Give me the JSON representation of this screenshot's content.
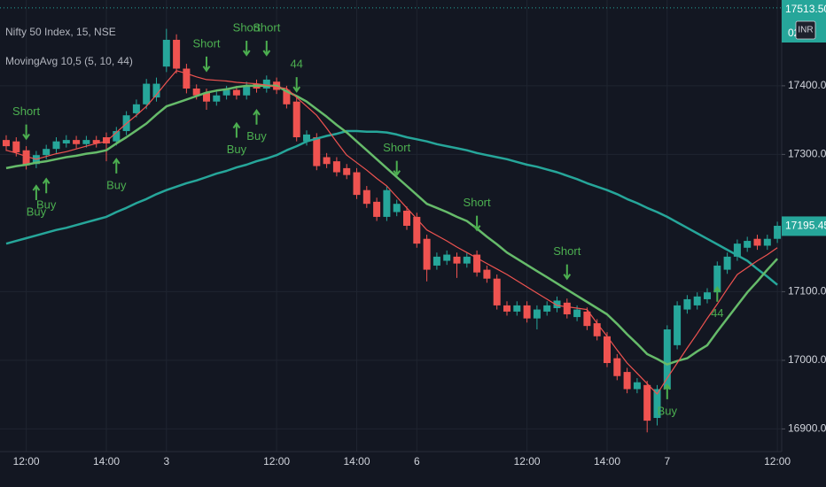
{
  "chart_data": {
    "type": "candlestick",
    "title": "Nifty 50 Index, 15, NSE",
    "subtitle": "MovingAvg 10,5 (5, 10, 44)",
    "currency": "INR",
    "countdown": "02",
    "up_color": "#26a69a",
    "down_color": "#ef5350",
    "grid": true,
    "categories": [
      null,
      null,
      "12:00",
      null,
      null,
      null,
      null,
      null,
      null,
      null,
      "14:00",
      null,
      null,
      null,
      null,
      null,
      "3",
      null,
      null,
      null,
      null,
      null,
      null,
      null,
      null,
      null,
      null,
      "12:00",
      null,
      null,
      null,
      null,
      null,
      null,
      null,
      "14:00",
      null,
      null,
      null,
      null,
      null,
      "6",
      null,
      null,
      null,
      null,
      null,
      null,
      null,
      null,
      null,
      null,
      "12:00",
      null,
      null,
      null,
      null,
      null,
      null,
      null,
      "14:00",
      null,
      null,
      null,
      null,
      null,
      "7",
      null,
      null,
      null,
      null,
      null,
      null,
      null,
      null,
      null,
      null,
      "12:00"
    ],
    "open": [
      17321,
      17319,
      17306,
      17286,
      17299,
      17308,
      17316,
      17321,
      17315,
      17321,
      17325,
      17319,
      17334,
      17360,
      17373,
      17383,
      17428,
      17467,
      17425,
      17396,
      17390,
      17377,
      17386,
      17394,
      17386,
      17403,
      17396,
      17406,
      17394,
      17377,
      17319,
      17325,
      17296,
      17290,
      17280,
      17274,
      17248,
      17231,
      17209,
      17216,
      17218,
      17209,
      17177,
      17138,
      17145,
      17151,
      17141,
      17154,
      17132,
      17119,
      17080,
      17071,
      17080,
      17061,
      17071,
      17076,
      17084,
      17063,
      17071,
      17054,
      17035,
      17003,
      16983,
      16958,
      16964,
      16916,
      16958,
      17022,
      17074,
      17080,
      17089,
      17099,
      17132,
      17151,
      17164,
      17177,
      17167,
      17177
    ],
    "high": [
      17328,
      17325,
      17312,
      17305,
      17314,
      17325,
      17328,
      17327,
      17327,
      17327,
      17332,
      17340,
      17363,
      17380,
      17410,
      17412,
      17483,
      17475,
      17432,
      17402,
      17396,
      17392,
      17400,
      17400,
      17406,
      17409,
      17415,
      17412,
      17400,
      17383,
      17335,
      17331,
      17302,
      17296,
      17286,
      17280,
      17254,
      17237,
      17254,
      17234,
      17224,
      17215,
      17183,
      17157,
      17160,
      17157,
      17157,
      17160,
      17138,
      17125,
      17086,
      17086,
      17086,
      17080,
      17086,
      17093,
      17090,
      17080,
      17077,
      17060,
      17041,
      17009,
      16989,
      16974,
      16970,
      16964,
      17051,
      17086,
      17095,
      17099,
      17105,
      17144,
      17157,
      17176,
      17180,
      17183,
      17183,
      17202
    ],
    "low": [
      17305,
      17297,
      17278,
      17280,
      17293,
      17302,
      17310,
      17309,
      17310,
      17310,
      17290,
      17313,
      17328,
      17354,
      17366,
      17377,
      17420,
      17418,
      17389,
      17380,
      17365,
      17371,
      17380,
      17380,
      17380,
      17390,
      17390,
      17388,
      17367,
      17319,
      17313,
      17277,
      17280,
      17268,
      17264,
      17235,
      17222,
      17203,
      17203,
      17210,
      17190,
      17164,
      17115,
      17132,
      17139,
      17120,
      17135,
      17122,
      17113,
      17074,
      17065,
      17065,
      17055,
      17045,
      17065,
      17070,
      17061,
      17057,
      17044,
      17029,
      16990,
      16971,
      16952,
      16952,
      16895,
      16905,
      16952,
      17016,
      17068,
      17074,
      17083,
      17093,
      17126,
      17145,
      17158,
      17161,
      17161,
      17171
    ],
    "close": [
      17312,
      17303,
      17284,
      17299,
      17308,
      17319,
      17321,
      17315,
      17321,
      17316,
      17316,
      17334,
      17357,
      17373,
      17403,
      17403,
      17467,
      17425,
      17396,
      17386,
      17377,
      17386,
      17394,
      17386,
      17400,
      17396,
      17409,
      17394,
      17373,
      17325,
      17329,
      17283,
      17286,
      17274,
      17270,
      17241,
      17228,
      17209,
      17248,
      17228,
      17196,
      17170,
      17132,
      17151,
      17154,
      17141,
      17151,
      17128,
      17119,
      17080,
      17071,
      17080,
      17061,
      17074,
      17080,
      17087,
      17067,
      17074,
      17050,
      17035,
      16996,
      16977,
      16958,
      16968,
      16912,
      16958,
      17045,
      17080,
      17089,
      17093,
      17099,
      17138,
      17151,
      17170,
      17174,
      17167,
      17177,
      17196
    ],
    "overlays": [
      {
        "color": "#26a69a",
        "values": [
          17170,
          17174,
          17178,
          17182,
          17186,
          17190,
          17193,
          17197,
          17201,
          17205,
          17209,
          17216,
          17222,
          17229,
          17235,
          17242,
          17248,
          17253,
          17258,
          17262,
          17267,
          17272,
          17276,
          17281,
          17285,
          17290,
          17294,
          17299,
          17306,
          17312,
          17319,
          17323,
          17327,
          17330,
          17334,
          17334,
          17333,
          17333,
          17332,
          17329,
          17325,
          17322,
          17319,
          17315,
          17312,
          17309,
          17306,
          17302,
          17299,
          17296,
          17293,
          17289,
          17285,
          17282,
          17278,
          17274,
          17269,
          17264,
          17258,
          17253,
          17248,
          17242,
          17235,
          17229,
          17222,
          17216,
          17209,
          17201,
          17193,
          17185,
          17177,
          17169,
          17161,
          17153,
          17145,
          17133,
          17122,
          17110
        ]
      },
      {
        "color": "#66bb6a",
        "values": [
          17280,
          17283,
          17285,
          17288,
          17290,
          17293,
          17296,
          17298,
          17301,
          17303,
          17306,
          17316,
          17325,
          17335,
          17345,
          17358,
          17370,
          17375,
          17380,
          17385,
          17390,
          17393,
          17395,
          17398,
          17400,
          17400,
          17400,
          17400,
          17392,
          17385,
          17377,
          17366,
          17355,
          17343,
          17332,
          17319,
          17306,
          17293,
          17280,
          17267,
          17254,
          17241,
          17228,
          17222,
          17216,
          17209,
          17203,
          17192,
          17180,
          17169,
          17157,
          17148,
          17139,
          17130,
          17121,
          17112,
          17103,
          17094,
          17085,
          17076,
          17067,
          17053,
          17038,
          17024,
          17009,
          17002,
          16994,
          16999,
          17003,
          17013,
          17022,
          17042,
          17061,
          17080,
          17099,
          17115,
          17132,
          17148
        ]
      },
      {
        "color": "#ef5350",
        "values": [
          17306,
          17302,
          17297,
          17293,
          17297,
          17301,
          17304,
          17308,
          17312,
          17316,
          17319,
          17332,
          17345,
          17357,
          17370,
          17387,
          17405,
          17422,
          17418,
          17413,
          17409,
          17408,
          17407,
          17405,
          17404,
          17403,
          17401,
          17398,
          17396,
          17383,
          17370,
          17357,
          17338,
          17318,
          17299,
          17288,
          17277,
          17265,
          17254,
          17238,
          17222,
          17206,
          17190,
          17182,
          17174,
          17165,
          17157,
          17149,
          17141,
          17133,
          17125,
          17116,
          17107,
          17098,
          17089,
          17080,
          17078,
          17076,
          17074,
          17054,
          17035,
          17015,
          16996,
          16981,
          16966,
          16951,
          16974,
          16996,
          17018,
          17039,
          17061,
          17082,
          17104,
          17125,
          17135,
          17145,
          17154,
          17164
        ]
      }
    ],
    "annotations": [
      {
        "text": "Short",
        "x": 2,
        "y": 17323,
        "direction": "down"
      },
      {
        "text": "Buy",
        "x": 3,
        "y": 17254,
        "direction": "up"
      },
      {
        "text": "Buy",
        "x": 4,
        "y": 17264,
        "direction": "up"
      },
      {
        "text": "Buy",
        "x": 11,
        "y": 17293,
        "direction": "up"
      },
      {
        "text": "Short",
        "x": 20,
        "y": 17422,
        "direction": "down"
      },
      {
        "text": "Buy",
        "x": 23,
        "y": 17345,
        "direction": "up"
      },
      {
        "text": "Short",
        "x": 24,
        "y": 17445,
        "direction": "down"
      },
      {
        "text": "Buy",
        "x": 25,
        "y": 17364,
        "direction": "up"
      },
      {
        "text": "Short",
        "x": 26,
        "y": 17445,
        "direction": "down"
      },
      {
        "text": "44",
        "x": 29,
        "y": 17392,
        "direction": "down"
      },
      {
        "text": "Short",
        "x": 39,
        "y": 17270,
        "direction": "down"
      },
      {
        "text": "Short",
        "x": 47,
        "y": 17190,
        "direction": "down"
      },
      {
        "text": "Short",
        "x": 56,
        "y": 17119,
        "direction": "down"
      },
      {
        "text": "Buy",
        "x": 66,
        "y": 16964,
        "direction": "up"
      },
      {
        "text": "44",
        "x": 71,
        "y": 17106,
        "direction": "up"
      }
    ],
    "ylim": [
      16867,
      17525
    ],
    "yticks": [
      {
        "value": 16900,
        "label": "16900.00"
      },
      {
        "value": 17000,
        "label": "17000.00"
      },
      {
        "value": 17100,
        "label": "17100.00"
      },
      {
        "value": 17300,
        "label": "17300.00"
      },
      {
        "value": 17400,
        "label": "17400.00"
      }
    ],
    "last_price": 17195.45,
    "high_marker": {
      "value": 17513.5,
      "label": "17513.50"
    }
  }
}
